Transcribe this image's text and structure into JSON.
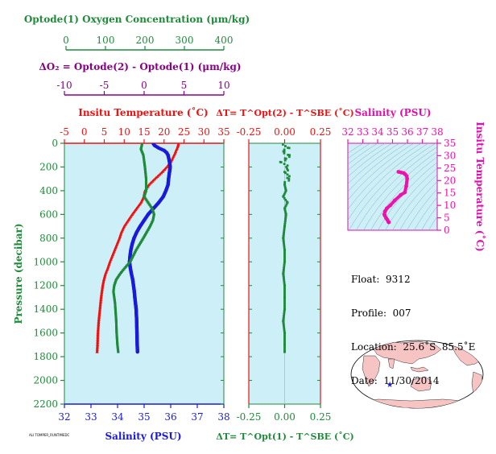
{
  "colors": {
    "bg": "#cdeff8",
    "temperature": "#ee1111",
    "salinity": "#1a1ad8",
    "oxygen": "#1f8a3a",
    "delta": "#880088",
    "ts": "#ee11aa",
    "land": "#f7c4c4"
  },
  "float_info": {
    "float": "Float:  9312",
    "profile": "Profile:  007",
    "location": "Location:  25.6˚S  85.5˚E",
    "date": "Date:  11/30/2014"
  },
  "footer_text": "ALI TOMPER_RUNTIMEDC",
  "chart_data": [
    {
      "type": "scatter",
      "name": "profile",
      "title": "",
      "ylabel": "Pressure (decibar)",
      "yticks": [
        "0",
        "200",
        "400",
        "600",
        "800",
        "1000",
        "1200",
        "1400",
        "1600",
        "1800",
        "2000",
        "2200"
      ],
      "ylim": [
        0,
        2200
      ],
      "axes": {
        "oxygen": {
          "label": "Optode(1) Oxygen Concentration (μm/kg)",
          "ticks": [
            "0",
            "100",
            "200",
            "300",
            "400"
          ],
          "lim": [
            0,
            400
          ]
        },
        "delta_o2": {
          "label": "ΔO₂ = Optode(2) - Optode(1)   (μm/kg)",
          "ticks": [
            "-10",
            "-5",
            "0",
            "5",
            "10"
          ],
          "lim": [
            -10,
            10
          ]
        },
        "temperature": {
          "label": "Insitu Temperature (˚C)",
          "ticks": [
            "-5",
            "0",
            "5",
            "10",
            "15",
            "20",
            "25",
            "30",
            "35"
          ],
          "lim": [
            -5,
            35
          ]
        },
        "salinity": {
          "label": "Salinity (PSU)",
          "ticks": [
            "32",
            "33",
            "34",
            "35",
            "36",
            "37",
            "38"
          ],
          "lim": [
            32,
            38
          ]
        }
      },
      "series": [
        {
          "key": "temperature",
          "pressure": [
            5,
            20,
            40,
            60,
            80,
            100,
            150,
            200,
            250,
            300,
            350,
            400,
            450,
            500,
            550,
            600,
            650,
            700,
            750,
            800,
            850,
            900,
            950,
            1000,
            1050,
            1100,
            1150,
            1200,
            1300,
            1400,
            1500,
            1600,
            1700,
            1760
          ],
          "values": [
            23.6,
            23.5,
            23.3,
            23.0,
            22.8,
            22.5,
            21.8,
            20.7,
            19.3,
            17.7,
            16.2,
            15.2,
            14.9,
            14.2,
            13.1,
            12.0,
            11.0,
            10.0,
            9.3,
            8.8,
            8.2,
            7.6,
            7.0,
            6.4,
            5.9,
            5.3,
            4.9,
            4.6,
            4.2,
            3.9,
            3.6,
            3.4,
            3.3,
            3.2
          ]
        },
        {
          "key": "salinity",
          "pressure": [
            5,
            20,
            40,
            60,
            80,
            100,
            150,
            200,
            250,
            300,
            350,
            400,
            450,
            500,
            550,
            600,
            650,
            700,
            750,
            800,
            850,
            900,
            950,
            1000,
            1050,
            1100,
            1150,
            1200,
            1250,
            1300,
            1400,
            1500,
            1600,
            1700,
            1760
          ],
          "values": [
            35.35,
            35.4,
            35.55,
            35.75,
            35.85,
            35.9,
            35.95,
            35.98,
            35.95,
            35.92,
            35.9,
            35.82,
            35.72,
            35.55,
            35.35,
            35.15,
            35.0,
            34.85,
            34.72,
            34.62,
            34.55,
            34.5,
            34.47,
            34.45,
            34.48,
            34.52,
            34.57,
            34.6,
            34.63,
            34.65,
            34.7,
            34.72,
            34.73,
            34.74,
            34.75
          ]
        },
        {
          "key": "oxygen",
          "pressure": [
            5,
            50,
            100,
            150,
            200,
            300,
            400,
            450,
            500,
            550,
            600,
            650,
            700,
            800,
            900,
            1000,
            1050,
            1100,
            1150,
            1200,
            1250,
            1300,
            1350,
            1400,
            1500,
            1600,
            1700,
            1760
          ],
          "values": [
            195,
            192,
            198,
            200,
            202,
            205,
            205,
            200,
            210,
            220,
            225,
            222,
            215,
            198,
            180,
            165,
            152,
            140,
            130,
            125,
            123,
            125,
            127,
            128,
            130,
            131,
            133,
            135
          ]
        }
      ]
    },
    {
      "type": "scatter",
      "name": "temperature-difference",
      "title": "",
      "xlabel_top": "ΔT= T^Opt(2) - T^SBE (˚C)",
      "xlabel_bottom": "ΔT= T^Opt(1) - T^SBE (˚C)",
      "xticks": [
        "-0.25",
        "0.00",
        "0.25"
      ],
      "xlim": [
        -0.25,
        0.25
      ],
      "ylim": [
        0,
        2200
      ],
      "series": [
        {
          "key": "delta_t",
          "pressure": [
            10,
            40,
            70,
            100,
            130,
            160,
            200,
            250,
            300,
            350,
            400,
            450,
            500,
            550,
            600,
            700,
            800,
            900,
            1000,
            1100,
            1200,
            1300,
            1400,
            1500,
            1600,
            1700,
            1760
          ],
          "values": [
            0.0,
            0.02,
            -0.01,
            0.03,
            0.01,
            -0.02,
            0.02,
            0.01,
            0.03,
            0.0,
            0.01,
            -0.01,
            0.02,
            0.0,
            0.01,
            0.0,
            -0.01,
            0.0,
            0.0,
            -0.01,
            0.0,
            0.0,
            0.0,
            -0.01,
            0.0,
            0.0,
            0.0
          ]
        }
      ]
    },
    {
      "type": "line",
      "name": "ts-diagram",
      "title": "",
      "xlabel": "Salinity (PSU)",
      "ylabel": "Insitu Temperature (˚C)",
      "xticks": [
        "32",
        "33",
        "34",
        "35",
        "36",
        "37",
        "38"
      ],
      "yticks": [
        "0",
        "5",
        "10",
        "15",
        "20",
        "25",
        "30",
        "35"
      ],
      "xlim": [
        32,
        38
      ],
      "ylim": [
        0,
        35
      ],
      "series": [
        {
          "key": "ts",
          "salinity": [
            34.75,
            34.72,
            34.65,
            34.57,
            34.48,
            34.45,
            34.5,
            34.62,
            34.85,
            35.15,
            35.55,
            35.82,
            35.92,
            35.98,
            35.95,
            35.85,
            35.75,
            35.55,
            35.4
          ],
          "temperature": [
            3.2,
            3.4,
            4.2,
            4.9,
            5.9,
            6.4,
            7.6,
            8.8,
            10.0,
            12.0,
            14.2,
            15.2,
            17.7,
            20.7,
            21.8,
            22.5,
            23.0,
            23.3,
            23.5
          ]
        }
      ]
    },
    {
      "type": "scatter",
      "name": "location-map",
      "title": "",
      "points": [
        {
          "lon": 85.5,
          "lat": -25.6
        }
      ]
    }
  ]
}
